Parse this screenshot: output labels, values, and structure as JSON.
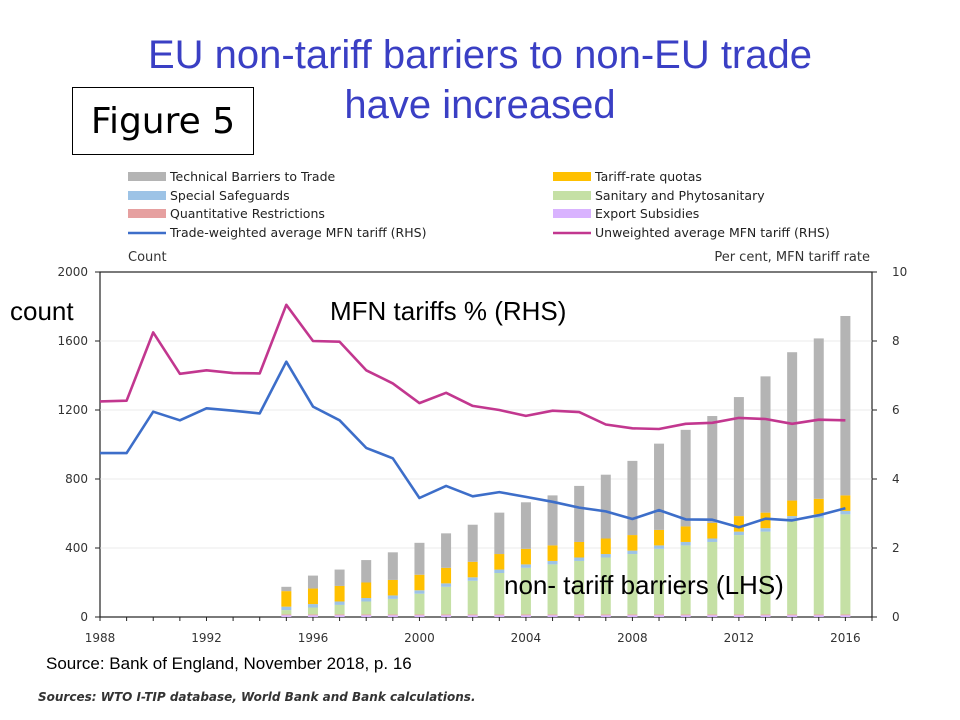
{
  "slide": {
    "title_line1": "EU non-tariff barriers to non-EU trade",
    "title_line2": "have increased",
    "figure_label": "Figure 5",
    "source": "Source: Bank of England, November 2018, p. 16",
    "footnote": "Sources: WTO I-TIP database, World Bank and Bank calculations."
  },
  "colors": {
    "title": "#3a3fc4",
    "tbt": "#b4b4b4",
    "trq": "#ffc000",
    "ss": "#9dc3e6",
    "sps": "#c5e0a5",
    "qr": "#e6a0a0",
    "es": "#d9b3ff",
    "trade_weighted": "#3d6ec9",
    "unweighted": "#c2378f"
  },
  "chart_data": {
    "type": "bar",
    "xlabel": "",
    "ylabel_left": "Count",
    "ylabel_right": "Per cent, MFN tariff rate",
    "annotation_count": "count",
    "annotation_rhs": "MFN tariffs % (RHS)",
    "annotation_lhs": "non- tariff barriers (LHS)",
    "ylim_left": [
      0,
      2000
    ],
    "yticks_left": [
      "0",
      "400",
      "800",
      "1200",
      "1600",
      "2000"
    ],
    "ylim_right": [
      0,
      10
    ],
    "yticks_right": [
      "0",
      "2",
      "4",
      "6",
      "8",
      "10"
    ],
    "xlim": [
      1988,
      2017
    ],
    "xticks": [
      "1988",
      "1992",
      "1996",
      "2000",
      "2004",
      "2008",
      "2012",
      "2016"
    ],
    "legend": [
      {
        "label": "Technical Barriers to Trade",
        "key": "tbt",
        "kind": "box"
      },
      {
        "label": "Special Safeguards",
        "key": "ss",
        "kind": "box"
      },
      {
        "label": "Quantitative Restrictions",
        "key": "qr",
        "kind": "box"
      },
      {
        "label": "Trade-weighted average MFN tariff (RHS)",
        "key": "trade_weighted",
        "kind": "line"
      },
      {
        "label": "Tariff-rate quotas",
        "key": "trq",
        "kind": "box"
      },
      {
        "label": "Sanitary and Phytosanitary",
        "key": "sps",
        "kind": "box"
      },
      {
        "label": "Export Subsidies",
        "key": "es",
        "kind": "box"
      },
      {
        "label": "Unweighted average MFN tariff (RHS)",
        "key": "unweighted",
        "kind": "line"
      }
    ],
    "bar_years": [
      1995,
      1996,
      1997,
      1998,
      1999,
      2000,
      2001,
      2002,
      2003,
      2004,
      2005,
      2006,
      2007,
      2008,
      2009,
      2010,
      2011,
      2012,
      2013,
      2014,
      2015,
      2016
    ],
    "bar_series": [
      {
        "name": "Export Subsidies",
        "key": "es",
        "values": [
          10,
          10,
          10,
          10,
          10,
          10,
          10,
          10,
          10,
          10,
          10,
          10,
          10,
          10,
          10,
          10,
          10,
          10,
          10,
          10,
          10,
          10
        ]
      },
      {
        "name": "Quantitative Restrictions",
        "key": "qr",
        "values": [
          5,
          5,
          5,
          5,
          5,
          5,
          5,
          5,
          5,
          5,
          5,
          5,
          5,
          5,
          5,
          5,
          5,
          5,
          5,
          5,
          5,
          5
        ]
      },
      {
        "name": "Sanitary and Phytosanitary",
        "key": "sps",
        "values": [
          25,
          40,
          55,
          75,
          90,
          120,
          160,
          195,
          240,
          270,
          290,
          310,
          330,
          350,
          380,
          400,
          420,
          460,
          480,
          550,
          560,
          580
        ]
      },
      {
        "name": "Special Safeguards",
        "key": "ss",
        "values": [
          20,
          20,
          20,
          20,
          20,
          20,
          20,
          20,
          20,
          20,
          20,
          20,
          20,
          20,
          20,
          20,
          20,
          20,
          20,
          20,
          20,
          20
        ]
      },
      {
        "name": "Tariff-rate quotas",
        "key": "trq",
        "values": [
          90,
          90,
          90,
          90,
          90,
          90,
          90,
          90,
          90,
          90,
          90,
          90,
          90,
          90,
          90,
          90,
          90,
          90,
          90,
          90,
          90,
          90
        ]
      },
      {
        "name": "Technical Barriers to Trade",
        "key": "tbt",
        "values": [
          25,
          75,
          95,
          130,
          160,
          185,
          200,
          215,
          240,
          270,
          290,
          325,
          370,
          430,
          500,
          560,
          620,
          690,
          790,
          860,
          930,
          1040
        ]
      }
    ],
    "line_series": [
      {
        "name": "Trade-weighted average MFN tariff (RHS)",
        "key": "trade_weighted",
        "x": [
          1988,
          1989,
          1990,
          1991,
          1992,
          1993,
          1994,
          1995,
          1996,
          1997,
          1998,
          1999,
          2000,
          2001,
          2002,
          2003,
          2004,
          2005,
          2006,
          2007,
          2008,
          2009,
          2010,
          2011,
          2012,
          2013,
          2014,
          2015,
          2016
        ],
        "y": [
          4.75,
          4.75,
          5.95,
          5.7,
          6.05,
          5.98,
          5.9,
          7.4,
          6.1,
          5.7,
          4.9,
          4.6,
          3.45,
          3.8,
          3.5,
          3.62,
          3.48,
          3.34,
          3.17,
          3.06,
          2.84,
          3.1,
          2.83,
          2.82,
          2.6,
          2.85,
          2.8,
          2.95,
          3.15
        ]
      },
      {
        "name": "Unweighted average MFN tariff (RHS)",
        "key": "unweighted",
        "x": [
          1988,
          1989,
          1990,
          1991,
          1992,
          1993,
          1994,
          1995,
          1996,
          1997,
          1998,
          1999,
          2000,
          2001,
          2002,
          2003,
          2004,
          2005,
          2006,
          2007,
          2008,
          2009,
          2010,
          2011,
          2012,
          2013,
          2014,
          2015,
          2016
        ],
        "y": [
          6.25,
          6.27,
          8.25,
          7.05,
          7.15,
          7.07,
          7.06,
          9.05,
          8.0,
          7.98,
          7.15,
          6.77,
          6.2,
          6.5,
          6.12,
          6.0,
          5.83,
          5.98,
          5.94,
          5.58,
          5.47,
          5.45,
          5.6,
          5.63,
          5.77,
          5.74,
          5.6,
          5.72,
          5.7
        ]
      }
    ]
  }
}
